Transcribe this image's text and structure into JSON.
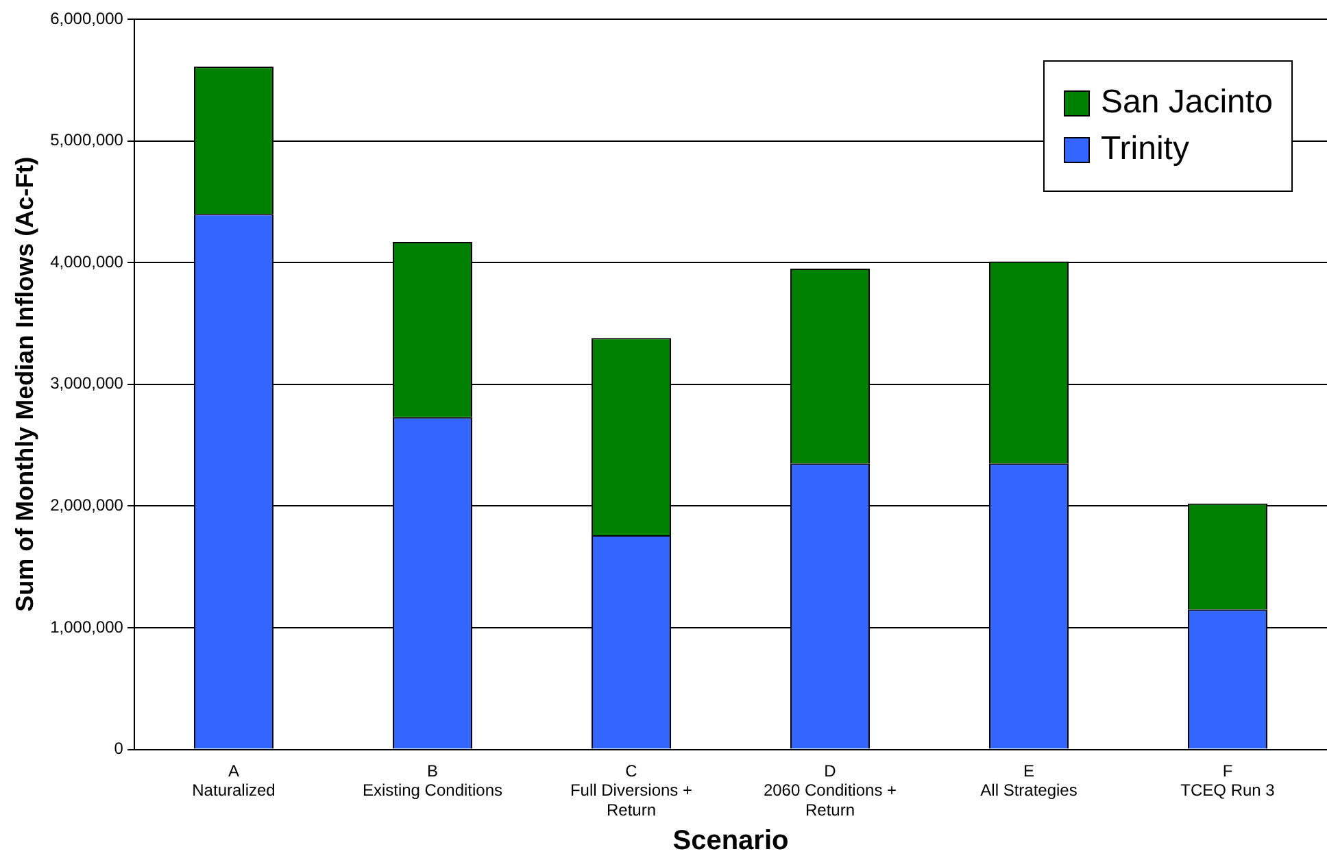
{
  "chart_data": {
    "type": "bar",
    "stacked": true,
    "xlabel": "Scenario",
    "ylabel": "Sum of Monthly Median Inflows (Ac-Ft)",
    "categories": [
      "A\nNaturalized",
      "B\nExisting Conditions",
      "C\nFull Diversions +\nReturn",
      "D\n2060 Conditions +\nReturn",
      "E\nAll Strategies",
      "F\nTCEQ Run 3"
    ],
    "series": [
      {
        "name": "Trinity",
        "color": "#3366ff",
        "values": [
          4400000,
          2730000,
          1760000,
          2350000,
          2350000,
          1150000
        ]
      },
      {
        "name": "San Jacinto",
        "color": "#008000",
        "values": [
          1210000,
          1440000,
          1620000,
          1600000,
          1660000,
          870000
        ]
      }
    ],
    "ylim": [
      0,
      6000000
    ],
    "yticks": [
      0,
      {
        "value": 1000000,
        "label": "1,000,000"
      },
      {
        "value": 2000000,
        "label": "2,000,000"
      },
      {
        "value": 3000000,
        "label": "3,000,000"
      },
      {
        "value": 4000000,
        "label": "4,000,000"
      },
      {
        "value": 5000000,
        "label": "5,000,000"
      },
      {
        "value": 6000000,
        "label": "6,000,000"
      }
    ],
    "grid": "y",
    "legend": "top right"
  }
}
